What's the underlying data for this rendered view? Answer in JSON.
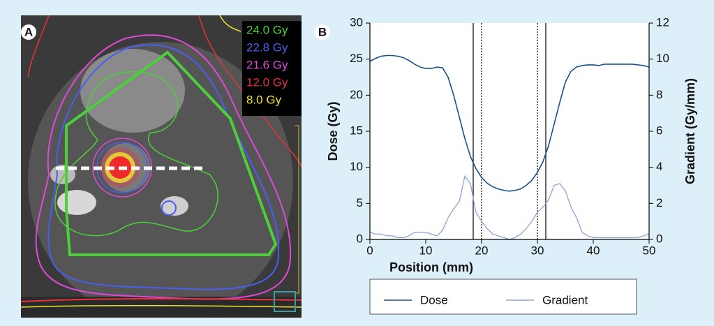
{
  "panel_a": {
    "label": "A",
    "dose_legend": [
      {
        "text": "24.0 Gy",
        "color": "#4ccf3a"
      },
      {
        "text": "22.8 Gy",
        "color": "#4a5ef0"
      },
      {
        "text": "21.6 Gy",
        "color": "#e04ad8"
      },
      {
        "text": "12.0 Gy",
        "color": "#e8323a"
      },
      {
        "text": "8.0 Gy",
        "color": "#f2e431"
      }
    ]
  },
  "chart_data": {
    "type": "line",
    "panel_label": "B",
    "x_label": "Position (mm)",
    "y_label": "Dose (Gy)",
    "y2_label": "Gradient (Gy/mm)",
    "x": [
      0,
      1,
      2,
      3,
      4,
      5,
      6,
      7,
      8,
      9,
      10,
      11,
      12,
      13,
      14,
      15,
      16,
      17,
      18,
      19,
      20,
      21,
      22,
      23,
      24,
      25,
      26,
      27,
      28,
      29,
      30,
      31,
      32,
      33,
      34,
      35,
      36,
      37,
      38,
      39,
      40,
      41,
      42,
      43,
      44,
      45,
      46,
      47,
      48,
      49,
      50
    ],
    "series": [
      {
        "name": "Dose",
        "color": "#1b4f8a",
        "axis": "y",
        "values": [
          24.7,
          25.1,
          25.4,
          25.5,
          25.5,
          25.4,
          25.2,
          24.8,
          24.3,
          23.9,
          23.7,
          23.7,
          23.9,
          23.8,
          22.5,
          20,
          17,
          14,
          11.5,
          9.8,
          8.6,
          7.8,
          7.3,
          7,
          6.8,
          6.7,
          6.8,
          7,
          7.5,
          8.2,
          9.3,
          10.8,
          13,
          16,
          19,
          21.8,
          23.3,
          23.9,
          24.1,
          24.2,
          24.2,
          24.1,
          24.3,
          24.3,
          24.3,
          24.3,
          24.3,
          24.3,
          24.2,
          24.1,
          23.9
        ]
      },
      {
        "name": "Gradient",
        "color": "#8fa2d8",
        "axis": "y2",
        "values": [
          0.4,
          0.3,
          0.3,
          0.2,
          0.2,
          0.1,
          0.1,
          0.2,
          0.4,
          0.4,
          0.4,
          0.3,
          0.2,
          0.5,
          1.2,
          1.7,
          2.1,
          3.5,
          3.1,
          1.5,
          1.0,
          0.6,
          0.3,
          0.2,
          0.1,
          0.0,
          0.1,
          0.3,
          0.6,
          1.0,
          1.5,
          1.8,
          2.2,
          3.0,
          3.1,
          2.7,
          1.8,
          1.2,
          0.4,
          0.2,
          0.1,
          0.1,
          0.1,
          0.1,
          0.1,
          0.1,
          0.1,
          0.1,
          0.1,
          0.2,
          0.3
        ]
      }
    ],
    "xlim": [
      0,
      50
    ],
    "xticks": [
      0,
      10,
      20,
      30,
      40,
      50
    ],
    "ylim": [
      0,
      30
    ],
    "yticks": [
      0,
      5,
      10,
      15,
      20,
      25,
      30
    ],
    "y2lim": [
      0,
      12
    ],
    "y2ticks": [
      0,
      2,
      4,
      6,
      8,
      10,
      12
    ],
    "vlines": [
      {
        "x": 18.5,
        "style": "solid"
      },
      {
        "x": 20,
        "style": "dotted"
      },
      {
        "x": 30,
        "style": "dotted"
      },
      {
        "x": 31.5,
        "style": "solid"
      }
    ]
  }
}
